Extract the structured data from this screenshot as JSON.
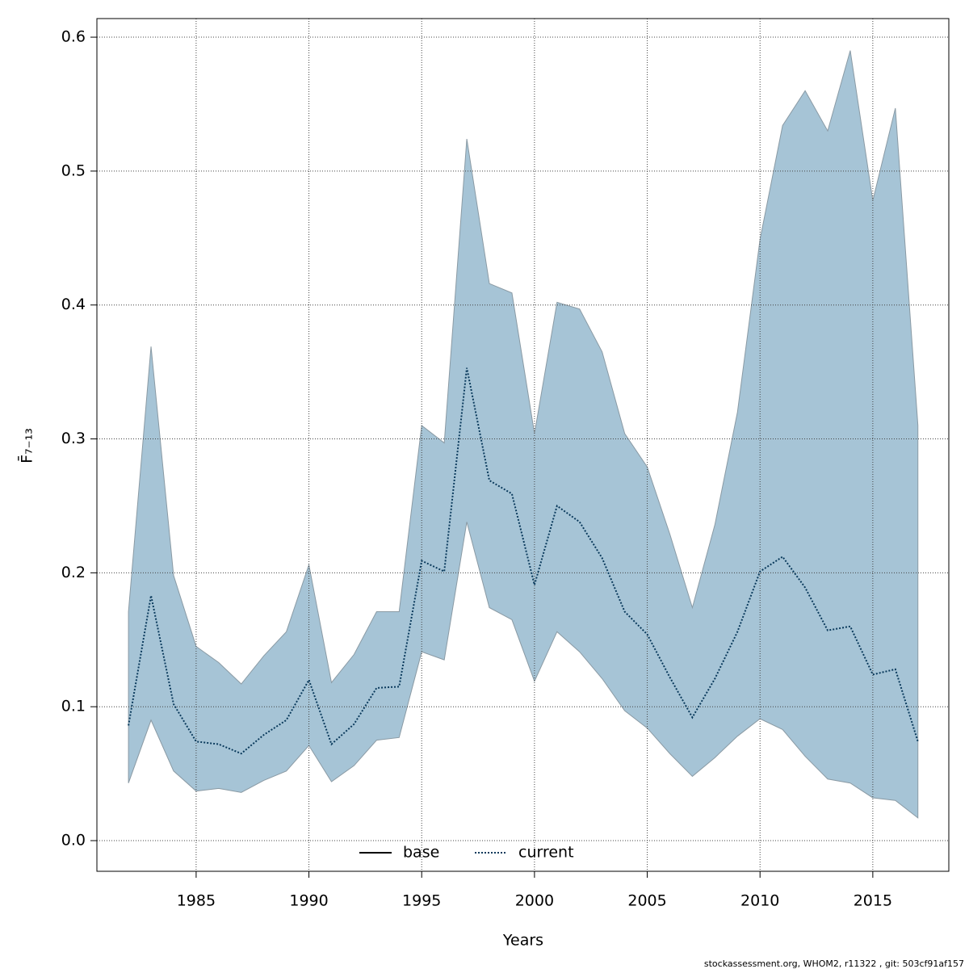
{
  "chart_data": {
    "type": "line",
    "xlabel": "Years",
    "ylabel": "F̄₇₋₁₃",
    "footer": "stockassessment.org, WHOM2, r11322 , git: 503cf91af157",
    "x": [
      1982,
      1983,
      1984,
      1985,
      1986,
      1987,
      1988,
      1989,
      1990,
      1991,
      1992,
      1993,
      1994,
      1995,
      1996,
      1997,
      1998,
      1999,
      2000,
      2001,
      2002,
      2003,
      2004,
      2005,
      2006,
      2007,
      2008,
      2009,
      2010,
      2011,
      2012,
      2013,
      2014,
      2015,
      2016,
      2017
    ],
    "series": [
      {
        "name": "base",
        "color": "#000000"
      },
      {
        "name": "current",
        "color": "#0a3a5c",
        "values": [
          0.086,
          0.183,
          0.102,
          0.074,
          0.072,
          0.065,
          0.079,
          0.09,
          0.12,
          0.072,
          0.087,
          0.114,
          0.115,
          0.209,
          0.201,
          0.353,
          0.269,
          0.259,
          0.191,
          0.25,
          0.238,
          0.211,
          0.171,
          0.154,
          0.122,
          0.092,
          0.121,
          0.156,
          0.201,
          0.212,
          0.189,
          0.157,
          0.16,
          0.124,
          0.128,
          0.074
        ]
      }
    ],
    "band": {
      "color": "#a6c4d6",
      "upper": [
        0.171,
        0.369,
        0.198,
        0.145,
        0.133,
        0.117,
        0.138,
        0.156,
        0.206,
        0.118,
        0.139,
        0.171,
        0.171,
        0.31,
        0.297,
        0.524,
        0.416,
        0.409,
        0.304,
        0.402,
        0.397,
        0.365,
        0.304,
        0.279,
        0.229,
        0.174,
        0.236,
        0.32,
        0.449,
        0.534,
        0.56,
        0.53,
        0.59,
        0.478,
        0.547,
        0.31
      ],
      "lower": [
        0.043,
        0.09,
        0.052,
        0.037,
        0.039,
        0.036,
        0.045,
        0.052,
        0.071,
        0.044,
        0.056,
        0.075,
        0.077,
        0.141,
        0.135,
        0.238,
        0.174,
        0.165,
        0.119,
        0.156,
        0.141,
        0.121,
        0.097,
        0.084,
        0.065,
        0.048,
        0.062,
        0.078,
        0.091,
        0.083,
        0.063,
        0.046,
        0.043,
        0.032,
        0.03,
        0.017
      ]
    },
    "xlim": [
      1980.6,
      2018.37
    ],
    "ylim": [
      -0.0229,
      0.6139
    ],
    "xticks": [
      1985,
      1990,
      1995,
      2000,
      2005,
      2010,
      2015
    ],
    "yticks": [
      {
        "value": 0,
        "label": "0.0"
      },
      0.1,
      0.2,
      0.3,
      0.4,
      0.5,
      0.6
    ],
    "grid": true
  }
}
